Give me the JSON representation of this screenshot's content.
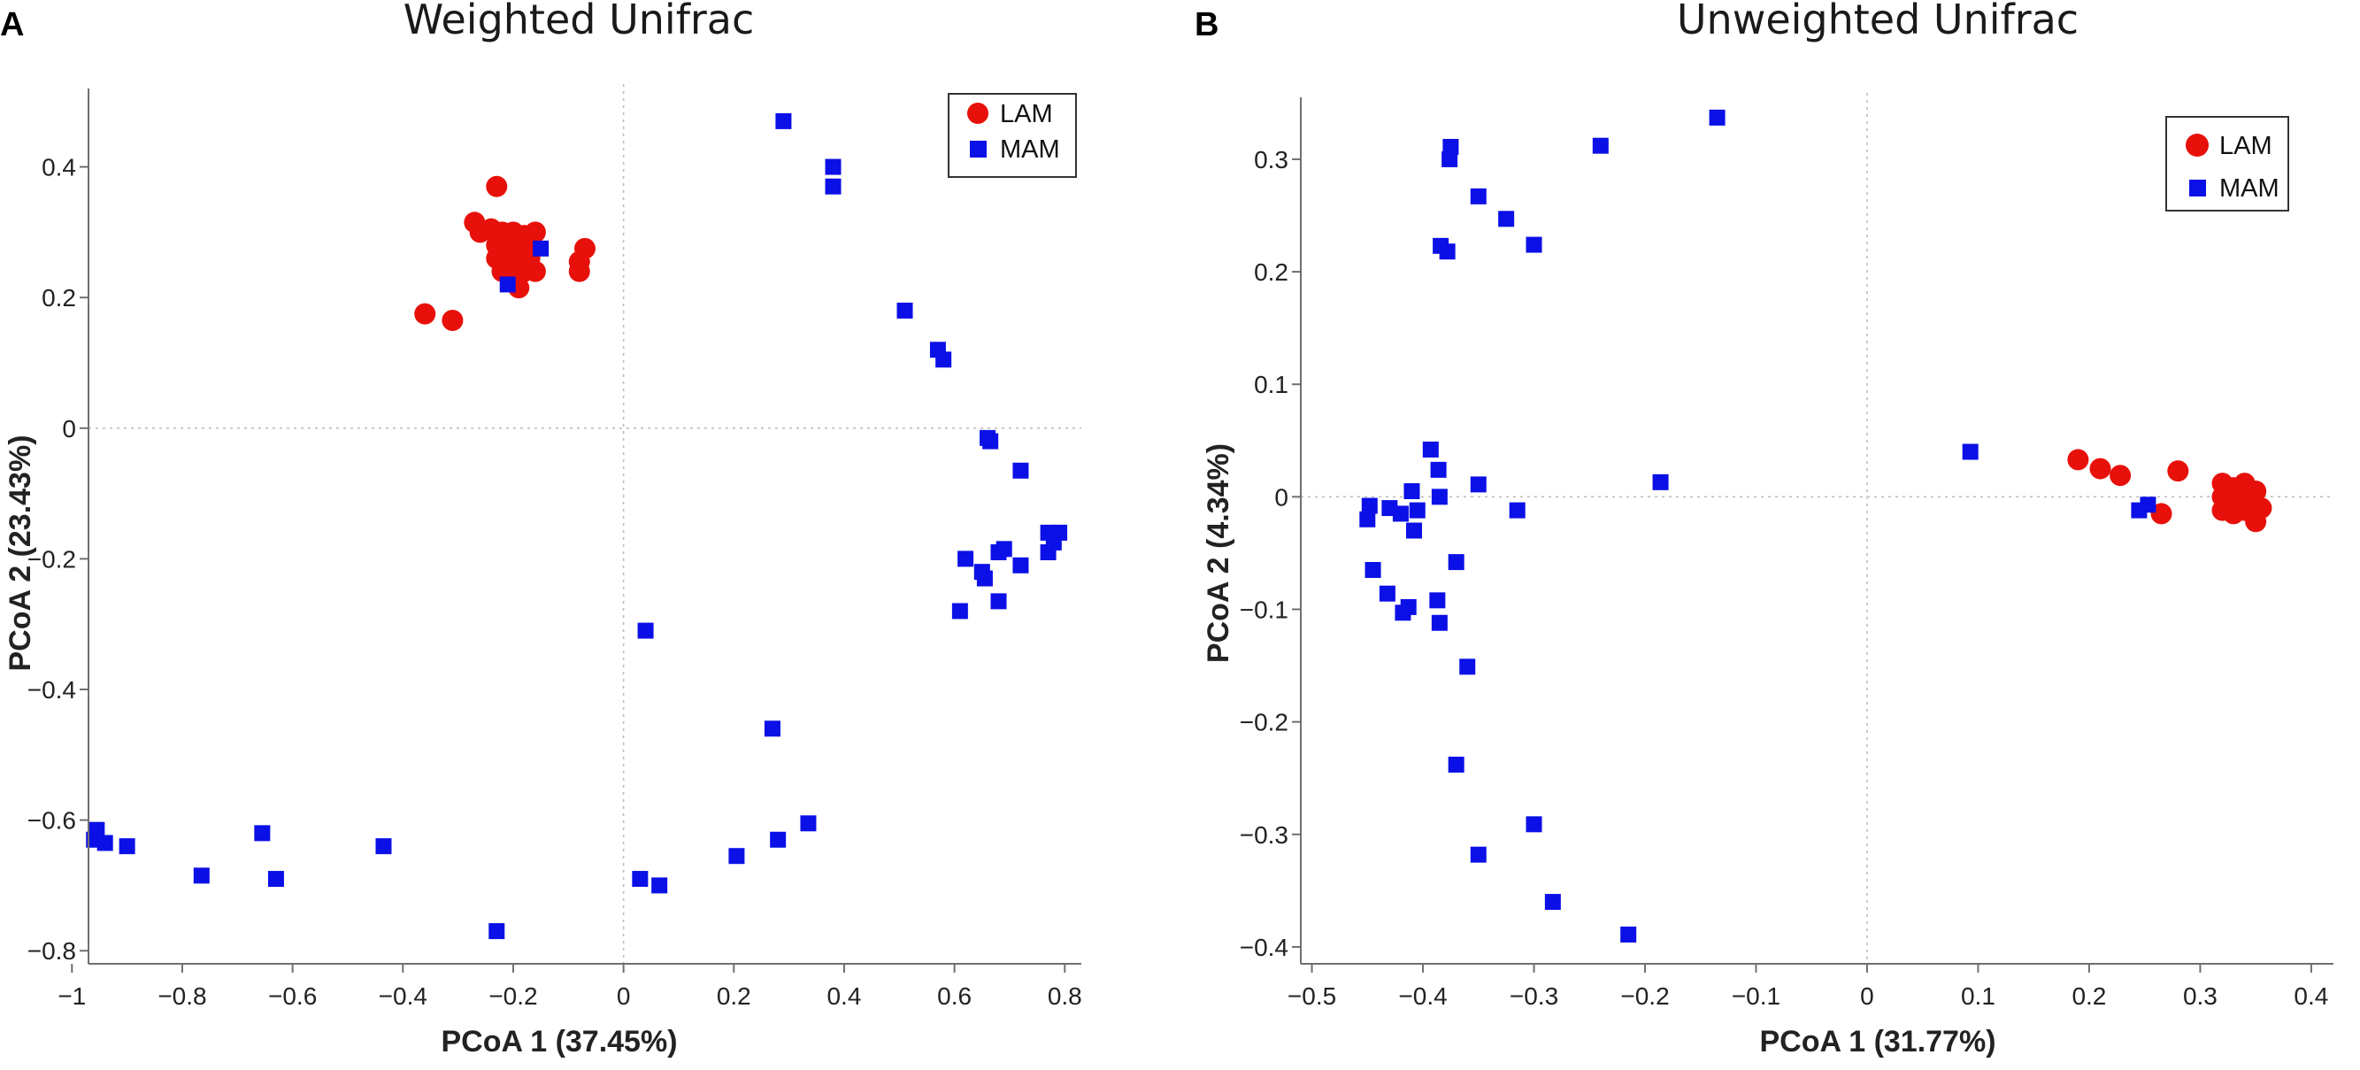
{
  "colors": {
    "LAM": "#e8100a",
    "MAM": "#0b10e6"
  },
  "chart_data": [
    {
      "panel": "A",
      "type": "scatter",
      "title": "Weighted Unifrac",
      "xlabel": "PCoA 1 (37.45%)",
      "ylabel": "PCoA 2 (23.43%)",
      "xlim": [
        -0.97,
        0.83
      ],
      "ylim": [
        -0.82,
        0.52
      ],
      "xticks": [
        -1,
        -0.8,
        -0.6,
        -0.4,
        -0.2,
        0,
        0.2,
        0.4,
        0.6,
        0.8
      ],
      "xtick_labels": [
        "−1",
        "−0.8",
        "−0.6",
        "−0.4",
        "−0.2",
        "0",
        "0.2",
        "0.4",
        "0.6",
        "0.8"
      ],
      "yticks": [
        -0.8,
        -0.6,
        -0.4,
        -0.2,
        0,
        0.2,
        0.4
      ],
      "ytick_labels": [
        "−0.8",
        "−0.6",
        "−0.4",
        "−0.2",
        "0",
        "0.2",
        "0.4"
      ],
      "legend_position": "top-right",
      "series": [
        {
          "name": "LAM",
          "marker": "circle",
          "points": [
            [
              -0.23,
              0.37
            ],
            [
              -0.27,
              0.315
            ],
            [
              -0.26,
              0.3
            ],
            [
              -0.24,
              0.305
            ],
            [
              -0.22,
              0.3
            ],
            [
              -0.2,
              0.3
            ],
            [
              -0.18,
              0.295
            ],
            [
              -0.16,
              0.3
            ],
            [
              -0.23,
              0.28
            ],
            [
              -0.21,
              0.28
            ],
            [
              -0.19,
              0.275
            ],
            [
              -0.17,
              0.275
            ],
            [
              -0.23,
              0.26
            ],
            [
              -0.21,
              0.26
            ],
            [
              -0.19,
              0.255
            ],
            [
              -0.17,
              0.26
            ],
            [
              -0.22,
              0.24
            ],
            [
              -0.2,
              0.245
            ],
            [
              -0.18,
              0.24
            ],
            [
              -0.16,
              0.24
            ],
            [
              -0.19,
              0.215
            ],
            [
              -0.08,
              0.255
            ],
            [
              -0.08,
              0.24
            ],
            [
              -0.07,
              0.275
            ],
            [
              -0.36,
              0.175
            ],
            [
              -0.31,
              0.165
            ]
          ]
        },
        {
          "name": "MAM",
          "marker": "square",
          "points": [
            [
              0.29,
              0.47
            ],
            [
              0.38,
              0.4
            ],
            [
              0.38,
              0.37
            ],
            [
              -0.15,
              0.275
            ],
            [
              -0.21,
              0.22
            ],
            [
              0.51,
              0.18
            ],
            [
              0.57,
              0.12
            ],
            [
              0.58,
              0.105
            ],
            [
              0.66,
              -0.015
            ],
            [
              0.665,
              -0.02
            ],
            [
              0.72,
              -0.065
            ],
            [
              0.77,
              -0.16
            ],
            [
              0.79,
              -0.16
            ],
            [
              0.78,
              -0.175
            ],
            [
              0.77,
              -0.19
            ],
            [
              0.69,
              -0.185
            ],
            [
              0.68,
              -0.19
            ],
            [
              0.62,
              -0.2
            ],
            [
              0.72,
              -0.21
            ],
            [
              0.65,
              -0.22
            ],
            [
              0.655,
              -0.23
            ],
            [
              0.68,
              -0.265
            ],
            [
              0.61,
              -0.28
            ],
            [
              0.04,
              -0.31
            ],
            [
              0.27,
              -0.46
            ],
            [
              -0.955,
              -0.615
            ],
            [
              -0.96,
              -0.63
            ],
            [
              -0.94,
              -0.635
            ],
            [
              -0.9,
              -0.64
            ],
            [
              -0.655,
              -0.62
            ],
            [
              -0.63,
              -0.69
            ],
            [
              -0.765,
              -0.685
            ],
            [
              -0.435,
              -0.64
            ],
            [
              0.335,
              -0.605
            ],
            [
              0.28,
              -0.63
            ],
            [
              0.205,
              -0.655
            ],
            [
              0.03,
              -0.69
            ],
            [
              0.065,
              -0.7
            ],
            [
              -0.23,
              -0.77
            ]
          ]
        }
      ]
    },
    {
      "panel": "B",
      "type": "scatter",
      "title": "Unweighted Unifrac",
      "xlabel": "PCoA 1 (31.77%)",
      "ylabel": "PCoA 2 (4.34%)",
      "xlim": [
        -0.51,
        0.42
      ],
      "ylim": [
        -0.415,
        0.355
      ],
      "xticks": [
        -0.5,
        -0.4,
        -0.3,
        -0.2,
        -0.1,
        0,
        0.1,
        0.2,
        0.3,
        0.4
      ],
      "xtick_labels": [
        "−0.5",
        "−0.4",
        "−0.3",
        "−0.2",
        "−0.1",
        "0",
        "0.1",
        "0.2",
        "0.3",
        "0.4"
      ],
      "yticks": [
        -0.4,
        -0.3,
        -0.2,
        -0.1,
        0,
        0.1,
        0.2,
        0.3
      ],
      "ytick_labels": [
        "−0.4",
        "−0.3",
        "−0.2",
        "−0.1",
        "0",
        "0.1",
        "0.2",
        "0.3"
      ],
      "legend_position": "top-right",
      "series": [
        {
          "name": "LAM",
          "marker": "circle",
          "points": [
            [
              0.19,
              0.033
            ],
            [
              0.21,
              0.025
            ],
            [
              0.228,
              0.019
            ],
            [
              0.28,
              0.023
            ],
            [
              0.32,
              0.012
            ],
            [
              0.33,
              0.008
            ],
            [
              0.34,
              0.012
            ],
            [
              0.35,
              0.005
            ],
            [
              0.32,
              0.0
            ],
            [
              0.335,
              0.0
            ],
            [
              0.345,
              -0.002
            ],
            [
              0.355,
              -0.01
            ],
            [
              0.32,
              -0.012
            ],
            [
              0.33,
              -0.015
            ],
            [
              0.34,
              -0.012
            ],
            [
              0.35,
              -0.022
            ],
            [
              0.265,
              -0.015
            ]
          ]
        },
        {
          "name": "MAM",
          "marker": "square",
          "points": [
            [
              -0.135,
              0.337
            ],
            [
              -0.24,
              0.312
            ],
            [
              -0.375,
              0.311
            ],
            [
              -0.376,
              0.3
            ],
            [
              -0.35,
              0.267
            ],
            [
              -0.325,
              0.247
            ],
            [
              -0.3,
              0.224
            ],
            [
              -0.384,
              0.223
            ],
            [
              -0.378,
              0.218
            ],
            [
              0.093,
              0.04
            ],
            [
              -0.186,
              0.013
            ],
            [
              -0.393,
              0.042
            ],
            [
              -0.386,
              0.024
            ],
            [
              -0.35,
              0.011
            ],
            [
              -0.41,
              0.005
            ],
            [
              -0.448,
              -0.008
            ],
            [
              -0.43,
              -0.01
            ],
            [
              -0.42,
              -0.015
            ],
            [
              -0.405,
              -0.012
            ],
            [
              -0.385,
              0.0
            ],
            [
              -0.315,
              -0.012
            ],
            [
              -0.45,
              -0.02
            ],
            [
              -0.408,
              -0.03
            ],
            [
              -0.37,
              -0.058
            ],
            [
              -0.445,
              -0.065
            ],
            [
              -0.432,
              -0.086
            ],
            [
              -0.387,
              -0.092
            ],
            [
              -0.413,
              -0.098
            ],
            [
              -0.418,
              -0.103
            ],
            [
              -0.385,
              -0.112
            ],
            [
              -0.36,
              -0.151
            ],
            [
              -0.37,
              -0.238
            ],
            [
              -0.3,
              -0.291
            ],
            [
              -0.35,
              -0.318
            ],
            [
              -0.283,
              -0.36
            ],
            [
              -0.215,
              -0.389
            ],
            [
              0.245,
              -0.012
            ],
            [
              0.253,
              -0.007
            ]
          ]
        }
      ]
    }
  ]
}
